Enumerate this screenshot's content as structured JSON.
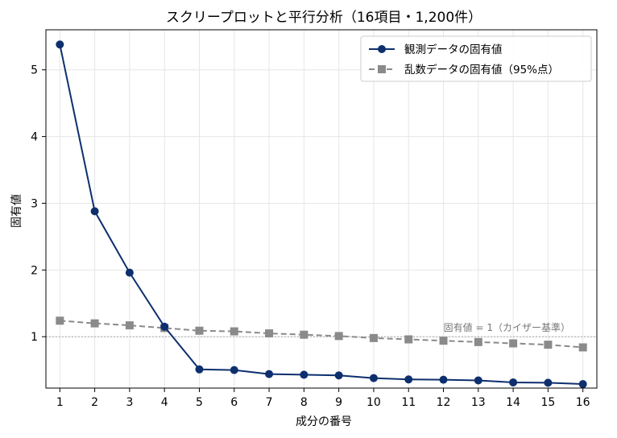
{
  "chart_data": {
    "type": "line",
    "title": "スクリープロットと平行分析（16項目・1,200件）",
    "xlabel": "成分の番号",
    "ylabel": "固有値",
    "x": [
      1,
      2,
      3,
      4,
      5,
      6,
      7,
      8,
      9,
      10,
      11,
      12,
      13,
      14,
      15,
      16
    ],
    "xlim": [
      0.6,
      16.4
    ],
    "ylim": [
      0.23,
      5.6
    ],
    "yticks": [
      1,
      2,
      3,
      4,
      5
    ],
    "grid": true,
    "legend_position": "top-right",
    "series": [
      {
        "name": "観測データの固有値",
        "style": "solid",
        "marker": "circle",
        "color": "#0d2f6e",
        "values": [
          5.38,
          2.88,
          1.96,
          1.15,
          0.51,
          0.5,
          0.44,
          0.43,
          0.42,
          0.38,
          0.36,
          0.355,
          0.345,
          0.315,
          0.31,
          0.29
        ]
      },
      {
        "name": "乱数データの固有値（95%点）",
        "style": "dashed",
        "marker": "square",
        "color": "#8a8a8a",
        "values": [
          1.24,
          1.2,
          1.17,
          1.13,
          1.09,
          1.08,
          1.05,
          1.03,
          1.01,
          0.98,
          0.96,
          0.94,
          0.92,
          0.9,
          0.88,
          0.84
        ]
      }
    ],
    "reference_line": {
      "y": 1,
      "label": "固有値 = 1（カイザー基準）",
      "color": "#aaaaaa"
    }
  }
}
